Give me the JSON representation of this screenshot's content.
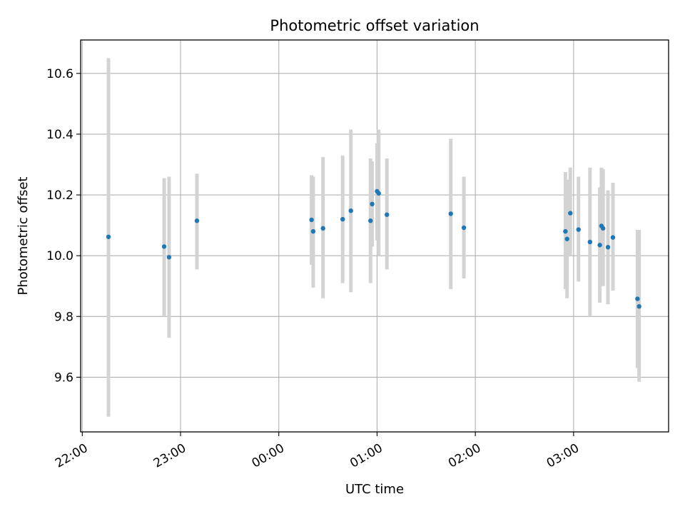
{
  "chart_data": {
    "type": "scatter",
    "title": "Photometric offset variation",
    "xlabel": "UTC time",
    "ylabel": "Photometric offset",
    "x_tick_labels": [
      "22:00",
      "23:00",
      "00:00",
      "01:00",
      "02:00",
      "03:00"
    ],
    "y_tick_labels": [
      "9.6",
      "9.8",
      "10.0",
      "10.2",
      "10.4",
      "10.6"
    ],
    "x_ticks": [
      "22:00",
      "23:00",
      "00:00",
      "01:00",
      "02:00",
      "03:00"
    ],
    "y_ticks": [
      9.6,
      9.8,
      10.0,
      10.2,
      10.4,
      10.6
    ],
    "xlim": [
      "21:59",
      "03:58"
    ],
    "ylim": [
      9.42,
      10.71
    ],
    "grid": true,
    "colors": {
      "marker": "#1f77b4",
      "errorbar": "#d3d3d3",
      "grid": "#b0b0b0",
      "axes": "#000000"
    },
    "points": [
      {
        "x": "22:16",
        "y": 10.062,
        "y_low": 9.47,
        "y_high": 10.65
      },
      {
        "x": "22:50",
        "y": 10.03,
        "y_low": 9.8,
        "y_high": 10.255
      },
      {
        "x": "22:53",
        "y": 9.995,
        "y_low": 9.73,
        "y_high": 10.26
      },
      {
        "x": "23:10",
        "y": 10.115,
        "y_low": 9.955,
        "y_high": 10.27
      },
      {
        "x": "00:20",
        "y": 10.118,
        "y_low": 9.97,
        "y_high": 10.265
      },
      {
        "x": "00:21",
        "y": 10.08,
        "y_low": 9.895,
        "y_high": 10.26
      },
      {
        "x": "00:27",
        "y": 10.09,
        "y_low": 9.86,
        "y_high": 10.325
      },
      {
        "x": "00:39",
        "y": 10.12,
        "y_low": 9.91,
        "y_high": 10.33
      },
      {
        "x": "00:44",
        "y": 10.148,
        "y_low": 9.88,
        "y_high": 10.415
      },
      {
        "x": "00:56",
        "y": 10.115,
        "y_low": 9.91,
        "y_high": 10.32
      },
      {
        "x": "00:57",
        "y": 10.17,
        "y_low": 10.03,
        "y_high": 10.31
      },
      {
        "x": "01:00",
        "y": 10.212,
        "y_low": 10.05,
        "y_high": 10.37
      },
      {
        "x": "01:01",
        "y": 10.205,
        "y_low": 10.0,
        "y_high": 10.415
      },
      {
        "x": "01:06",
        "y": 10.135,
        "y_low": 9.955,
        "y_high": 10.32
      },
      {
        "x": "01:45",
        "y": 10.138,
        "y_low": 9.89,
        "y_high": 10.385
      },
      {
        "x": "01:53",
        "y": 10.092,
        "y_low": 9.925,
        "y_high": 10.26
      },
      {
        "x": "02:55",
        "y": 10.08,
        "y_low": 9.89,
        "y_high": 10.275
      },
      {
        "x": "02:56",
        "y": 10.055,
        "y_low": 9.86,
        "y_high": 10.25
      },
      {
        "x": "02:58",
        "y": 10.14,
        "y_low": 10.0,
        "y_high": 10.29
      },
      {
        "x": "03:03",
        "y": 10.086,
        "y_low": 9.915,
        "y_high": 10.26
      },
      {
        "x": "03:10",
        "y": 10.045,
        "y_low": 9.8,
        "y_high": 10.29
      },
      {
        "x": "03:16",
        "y": 10.035,
        "y_low": 9.845,
        "y_high": 10.225
      },
      {
        "x": "03:17",
        "y": 10.098,
        "y_low": 9.905,
        "y_high": 10.29
      },
      {
        "x": "03:18",
        "y": 10.09,
        "y_low": 9.9,
        "y_high": 10.285
      },
      {
        "x": "03:21",
        "y": 10.028,
        "y_low": 9.84,
        "y_high": 10.215
      },
      {
        "x": "03:24",
        "y": 10.06,
        "y_low": 9.885,
        "y_high": 10.24
      },
      {
        "x": "03:39",
        "y": 9.858,
        "y_low": 9.63,
        "y_high": 10.085
      },
      {
        "x": "03:40",
        "y": 9.833,
        "y_low": 9.585,
        "y_high": 10.085
      }
    ]
  }
}
